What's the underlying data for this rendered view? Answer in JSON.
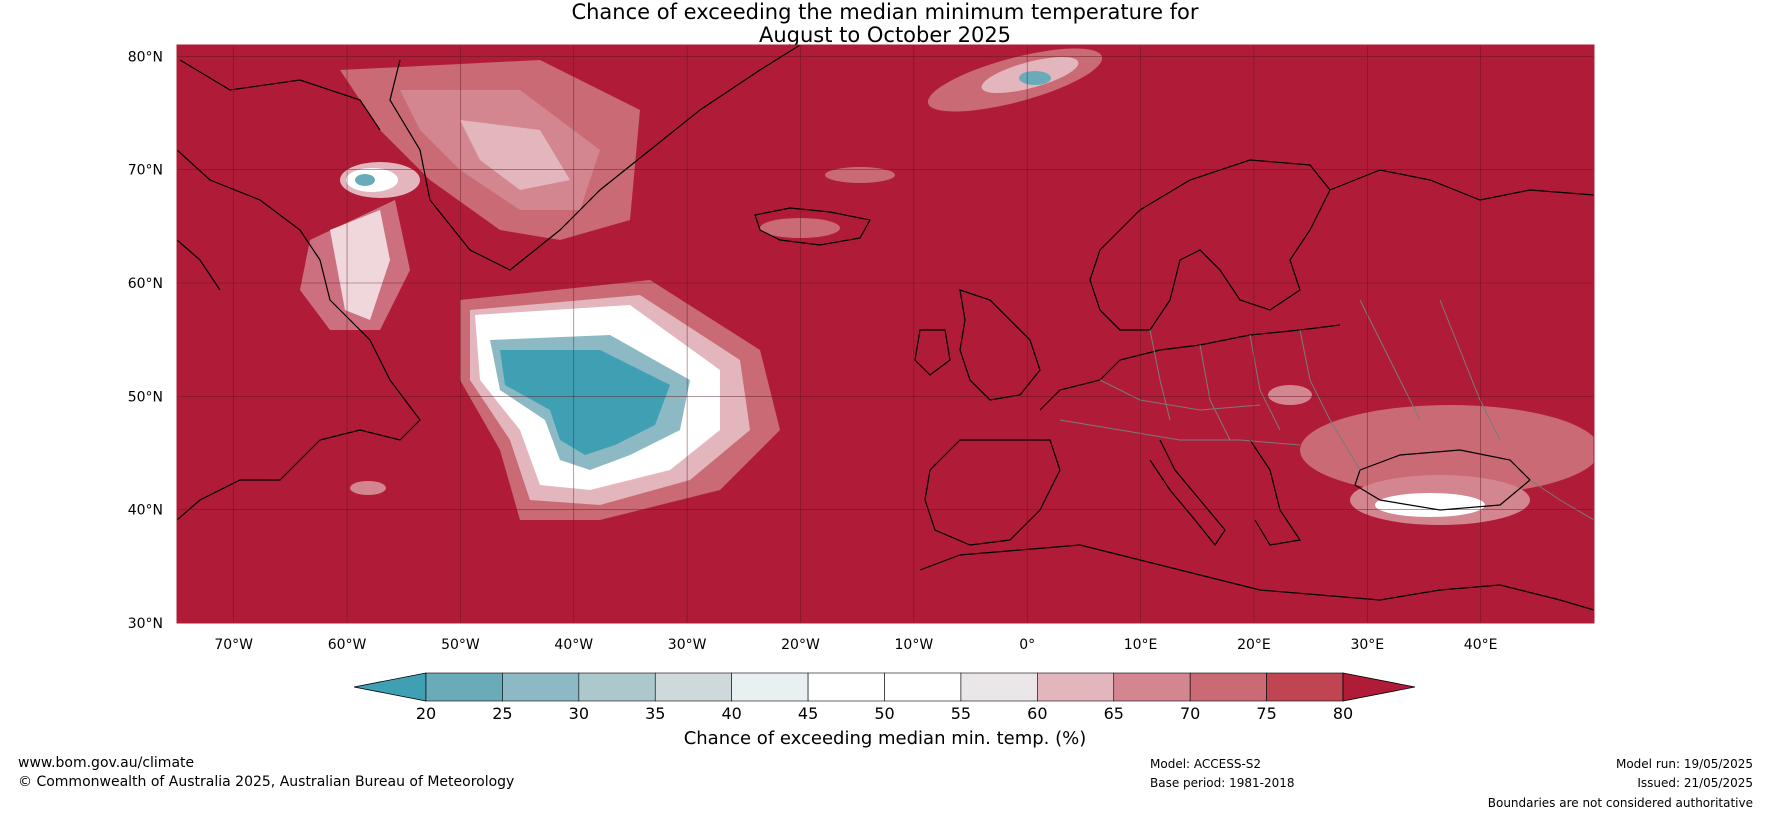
{
  "title": {
    "line1": "Chance of exceeding the median minimum temperature for",
    "line2": "August to October 2025"
  },
  "map": {
    "lon_range": [
      -75,
      50
    ],
    "lat_range": [
      30,
      81
    ],
    "lat_labels": [
      "30°N",
      "40°N",
      "50°N",
      "60°N",
      "70°N",
      "80°N"
    ],
    "lat_values": [
      30,
      40,
      50,
      60,
      70,
      80
    ],
    "lon_labels": [
      "70°W",
      "60°W",
      "50°W",
      "40°W",
      "30°W",
      "20°W",
      "10°W",
      "0°",
      "10°E",
      "20°E",
      "30°E",
      "40°E"
    ],
    "lon_values": [
      -70,
      -60,
      -50,
      -40,
      -30,
      -20,
      -10,
      0,
      10,
      20,
      30,
      40
    ],
    "background_color": "#b01c37",
    "gridlines": true
  },
  "colorbar": {
    "title": "Chance of exceeding median min. temp. (%)",
    "ticks": [
      "20",
      "25",
      "30",
      "35",
      "40",
      "45",
      "50",
      "55",
      "60",
      "65",
      "70",
      "75",
      "80"
    ],
    "colors": [
      "#3fa0b4",
      "#6aabb9",
      "#8cb9c4",
      "#acc8cc",
      "#cfd9db",
      "#e8f0f1",
      "#ffffff",
      "#ffffff",
      "#ebe6e7",
      "#e3b6bd",
      "#d48690",
      "#c96a74",
      "#bf4552"
    ],
    "under_color": "#3fa0b4",
    "over_color": "#b01c37"
  },
  "footer": {
    "website": "www.bom.gov.au/climate",
    "copyright": "© Commonwealth of Australia 2025, Australian Bureau of Meteorology",
    "model": "Model: ACCESS-S2",
    "base_period": "Base period: 1981-2018",
    "model_run": "Model run: 19/05/2025",
    "issued": "Issued: 21/05/2025",
    "disclaimer": "Boundaries are not considered authoritative"
  }
}
